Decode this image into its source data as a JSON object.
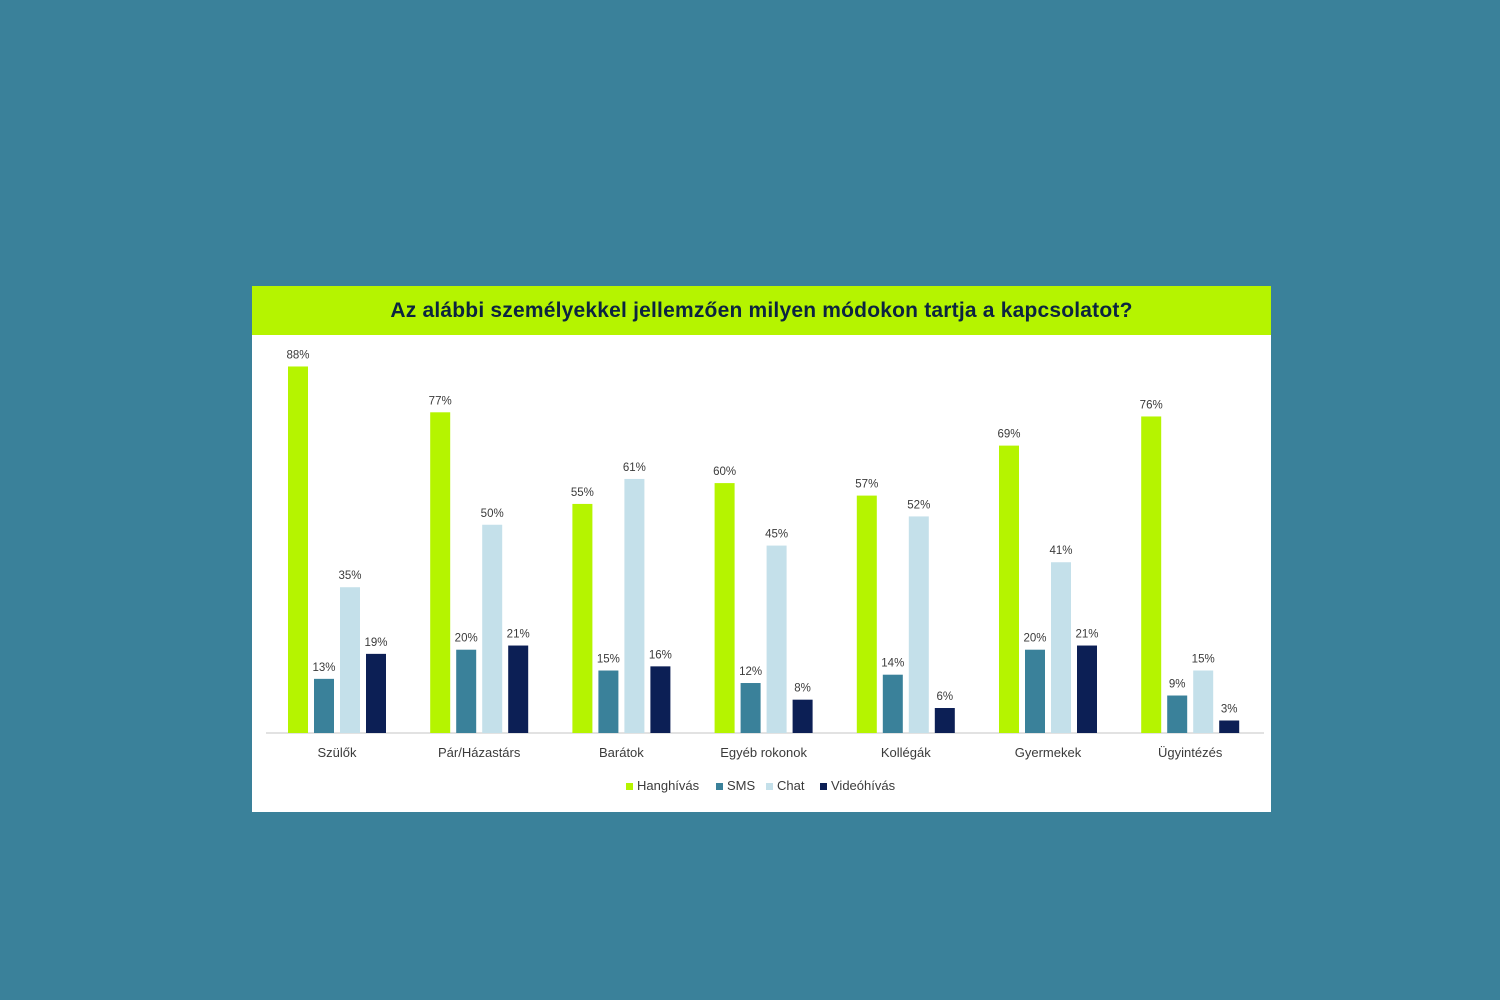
{
  "chart_data": {
    "type": "bar",
    "title": "Az alábbi személyekkel jellemzően milyen módokon tartja a kapcsolatot?",
    "categories": [
      "Szülők",
      "Pár/Házastárs",
      "Barátok",
      "Egyéb rokonok",
      "Kollégák",
      "Gyermekek",
      "Ügyintézés"
    ],
    "series": [
      {
        "name": "Hanghívás",
        "color": "#b5f400",
        "values": [
          88,
          77,
          55,
          60,
          57,
          69,
          76
        ]
      },
      {
        "name": "SMS",
        "color": "#3a819a",
        "values": [
          13,
          20,
          15,
          12,
          14,
          20,
          9
        ]
      },
      {
        "name": "Chat",
        "color": "#c4e0ea",
        "values": [
          35,
          50,
          61,
          45,
          52,
          41,
          15
        ]
      },
      {
        "name": "Videóhívás",
        "color": "#0c1f55",
        "values": [
          19,
          21,
          16,
          8,
          6,
          21,
          3
        ]
      }
    ],
    "value_suffix": "%",
    "ylim": [
      0,
      100
    ],
    "grid": false,
    "legend_position": "bottom-center",
    "data_labels": true
  }
}
